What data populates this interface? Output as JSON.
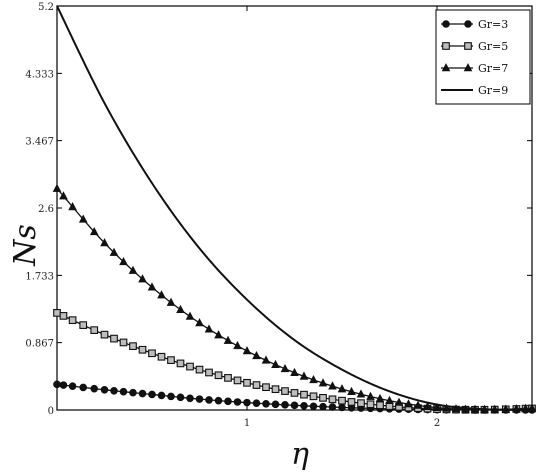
{
  "chart_data": {
    "type": "line",
    "xlabel": "η",
    "ylabel": "Ns",
    "xlim": [
      0,
      2.5
    ],
    "ylim": [
      0,
      5.2
    ],
    "x_ticks": [
      "1",
      "2"
    ],
    "x_tick_values": [
      1,
      2
    ],
    "y_ticks": [
      "0",
      "0.867",
      "1.733",
      "2.6",
      "3.467",
      "4.333",
      "5.2"
    ],
    "y_tick_values": [
      0,
      0.867,
      1.733,
      2.6,
      3.467,
      4.333,
      5.2
    ],
    "grid": false,
    "legend_position": "top-right",
    "series": [
      {
        "name": "Gr=3",
        "marker": "circle",
        "x": [
          0,
          0.25,
          0.5,
          0.75,
          1.0,
          1.25,
          1.5,
          1.75,
          2.0,
          2.25,
          2.5
        ],
        "values": [
          0.33,
          0.26,
          0.2,
          0.14,
          0.095,
          0.06,
          0.033,
          0.015,
          0.004,
          0.001,
          0.0
        ]
      },
      {
        "name": "Gr=5",
        "marker": "square",
        "x": [
          0,
          0.25,
          0.5,
          0.75,
          1.0,
          1.25,
          1.5,
          1.75,
          2.0,
          2.25,
          2.5
        ],
        "values": [
          1.25,
          0.97,
          0.73,
          0.52,
          0.35,
          0.22,
          0.12,
          0.05,
          0.012,
          0.003,
          0.02
        ]
      },
      {
        "name": "Gr=7",
        "marker": "triangle",
        "x": [
          0,
          0.25,
          0.5,
          0.75,
          1.0,
          1.25,
          1.5,
          1.75,
          2.0,
          2.25,
          2.5
        ],
        "values": [
          2.85,
          2.15,
          1.58,
          1.12,
          0.76,
          0.48,
          0.27,
          0.12,
          0.03,
          0.005,
          0.02
        ]
      },
      {
        "name": "Gr=9",
        "marker": "none",
        "x": [
          0,
          0.25,
          0.5,
          0.75,
          1.0,
          1.25,
          1.5,
          1.75,
          2.0,
          2.25,
          2.5
        ],
        "values": [
          5.2,
          3.95,
          2.92,
          2.08,
          1.42,
          0.9,
          0.52,
          0.24,
          0.07,
          0.01,
          0.0
        ]
      }
    ]
  }
}
